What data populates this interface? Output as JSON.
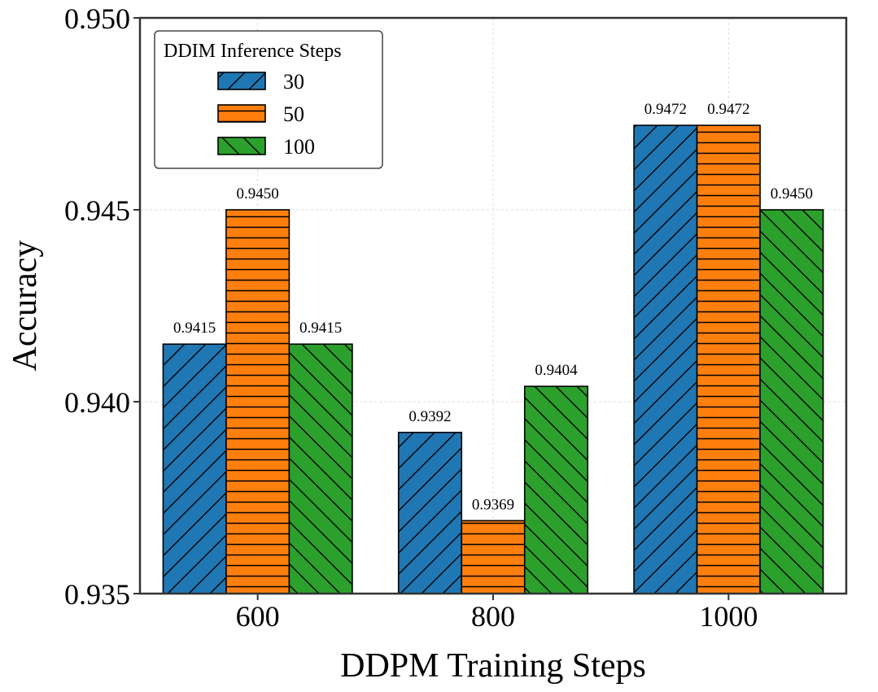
{
  "chart_data": {
    "type": "bar",
    "title": "",
    "xlabel": "DDPM Training Steps",
    "ylabel": "Accuracy",
    "categories": [
      "600",
      "800",
      "1000"
    ],
    "ylim": [
      0.935,
      0.95
    ],
    "yticks": [
      0.935,
      0.94,
      0.945,
      0.95
    ],
    "ytick_labels": [
      "0.935",
      "0.940",
      "0.945",
      "0.950"
    ],
    "grid": true,
    "legend": {
      "title": "DDIM Inference Steps",
      "position": "top-left"
    },
    "series": [
      {
        "name": "30",
        "values": [
          0.9415,
          0.9392,
          0.9472
        ],
        "labels": [
          "0.9415",
          "0.9392",
          "0.9472"
        ],
        "color": "#1f77b4",
        "hatch": "forward-diagonal"
      },
      {
        "name": "50",
        "values": [
          0.945,
          0.9369,
          0.9472
        ],
        "labels": [
          "0.9450",
          "0.9369",
          "0.9472"
        ],
        "color": "#ff7f0e",
        "hatch": "horizontal"
      },
      {
        "name": "100",
        "values": [
          0.9415,
          0.9404,
          0.945
        ],
        "labels": [
          "0.9415",
          "0.9404",
          "0.9450"
        ],
        "color": "#2ca02c",
        "hatch": "back-diagonal"
      }
    ]
  }
}
